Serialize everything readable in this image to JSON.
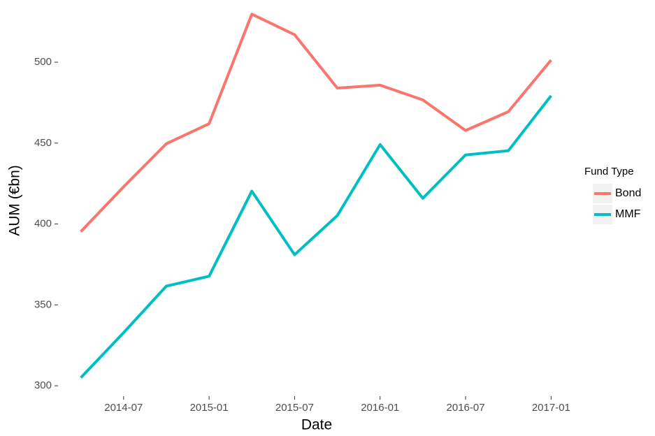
{
  "chart_data": {
    "type": "line",
    "x_label": "Date",
    "y_label": "AUM (€bn)",
    "x": [
      "2014-04",
      "2014-07",
      "2014-10",
      "2015-01",
      "2015-04",
      "2015-07",
      "2015-10",
      "2016-01",
      "2016-04",
      "2016-07",
      "2016-10",
      "2017-01"
    ],
    "series": [
      {
        "name": "Bond",
        "color": "#F8766D",
        "values": [
          395.3,
          423,
          449.6,
          462,
          529.7,
          517,
          484,
          485.8,
          476.7,
          457.8,
          469.4,
          501.3
        ]
      },
      {
        "name": "MMF",
        "color": "#00BFC4",
        "values": [
          305,
          332.8,
          361.6,
          367.7,
          420.3,
          381,
          405.2,
          449.1,
          415.9,
          442.7,
          445.3,
          479.3
        ]
      }
    ],
    "xticks": [
      "2014-07",
      "2015-01",
      "2015-07",
      "2016-01",
      "2016-07",
      "2017-01"
    ],
    "ylim": [
      294,
      535
    ],
    "yticks": [
      300,
      350,
      400,
      450,
      500
    ],
    "legend_title": "Fund Type",
    "legend": "right",
    "grid": false
  }
}
